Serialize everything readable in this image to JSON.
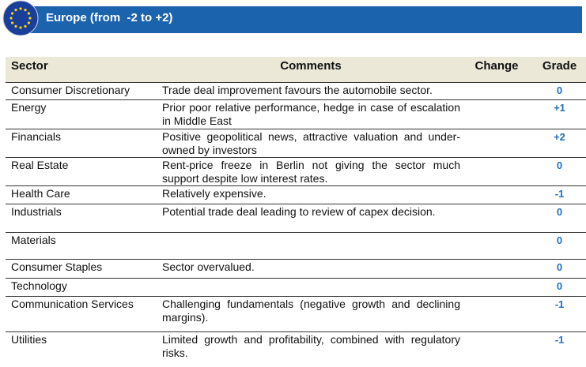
{
  "header": {
    "title": "Europe (from  -2 to +2)"
  },
  "table": {
    "columns": [
      "Sector",
      "Comments",
      "Change",
      "Grade"
    ],
    "rows": [
      {
        "sector": "Consumer Discretionary",
        "comment": "Trade deal improvement favours the automobile sector.",
        "grade": "0"
      },
      {
        "sector": "Energy",
        "comment": "Prior poor relative performance, hedge in case of escalation in Middle East",
        "grade": "+1"
      },
      {
        "sector": "Financials",
        "comment": "Positive geopolitical news, attractive valuation and under-owned by investors",
        "grade": "+2"
      },
      {
        "sector": "Real Estate",
        "comment": "Rent-price freeze in Berlin not giving the sector much support despite low interest rates.",
        "grade": "0"
      },
      {
        "sector": "Health Care",
        "comment": "Relatively expensive.",
        "grade": "-1"
      },
      {
        "sector": "Industrials",
        "comment": "Potential trade deal leading to review of capex decision.",
        "grade": "0"
      },
      {
        "sector": "Materials",
        "grade": "0"
      },
      {
        "sector": "Consumer Staples",
        "comment": "Sector overvalued.",
        "grade": "0"
      },
      {
        "sector": "Technology",
        "grade": "0"
      },
      {
        "sector": "Communication Services",
        "comment": "Challenging fundamentals (negative growth and declining margins).",
        "grade": "-1"
      },
      {
        "sector": "Utilities",
        "comment": "Limited growth and profitability, combined with regulatory risks.",
        "grade": "-1"
      }
    ]
  }
}
